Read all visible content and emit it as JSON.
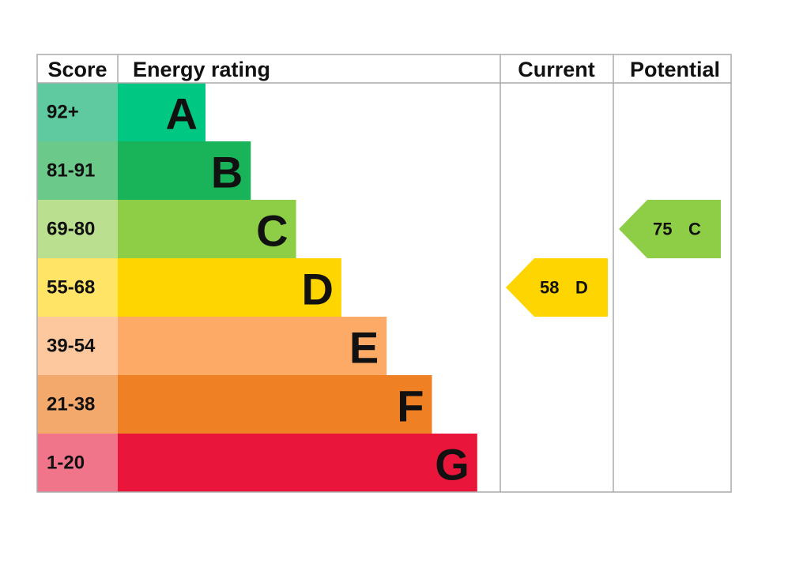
{
  "header": {
    "score": "Score",
    "rating": "Energy rating",
    "current": "Current",
    "potential": "Potential"
  },
  "bands": [
    {
      "score": "92+",
      "letter": "A",
      "color": "#00c781",
      "score_color": "#5fc9a0"
    },
    {
      "score": "81-91",
      "letter": "B",
      "color": "#19b459",
      "score_color": "#6bca8a"
    },
    {
      "score": "69-80",
      "letter": "C",
      "color": "#8dce46",
      "score_color": "#badf8e"
    },
    {
      "score": "55-68",
      "letter": "D",
      "color": "#ffd500",
      "score_color": "#ffe466"
    },
    {
      "score": "39-54",
      "letter": "E",
      "color": "#fcaa65",
      "score_color": "#fdc89d"
    },
    {
      "score": "21-38",
      "letter": "F",
      "color": "#ef8023",
      "score_color": "#f4a96c"
    },
    {
      "score": "1-20",
      "letter": "G",
      "color": "#e9153b",
      "score_color": "#f0748a"
    }
  ],
  "current": {
    "score": 58,
    "rating": "D"
  },
  "potential": {
    "score": 75,
    "rating": "C"
  }
}
